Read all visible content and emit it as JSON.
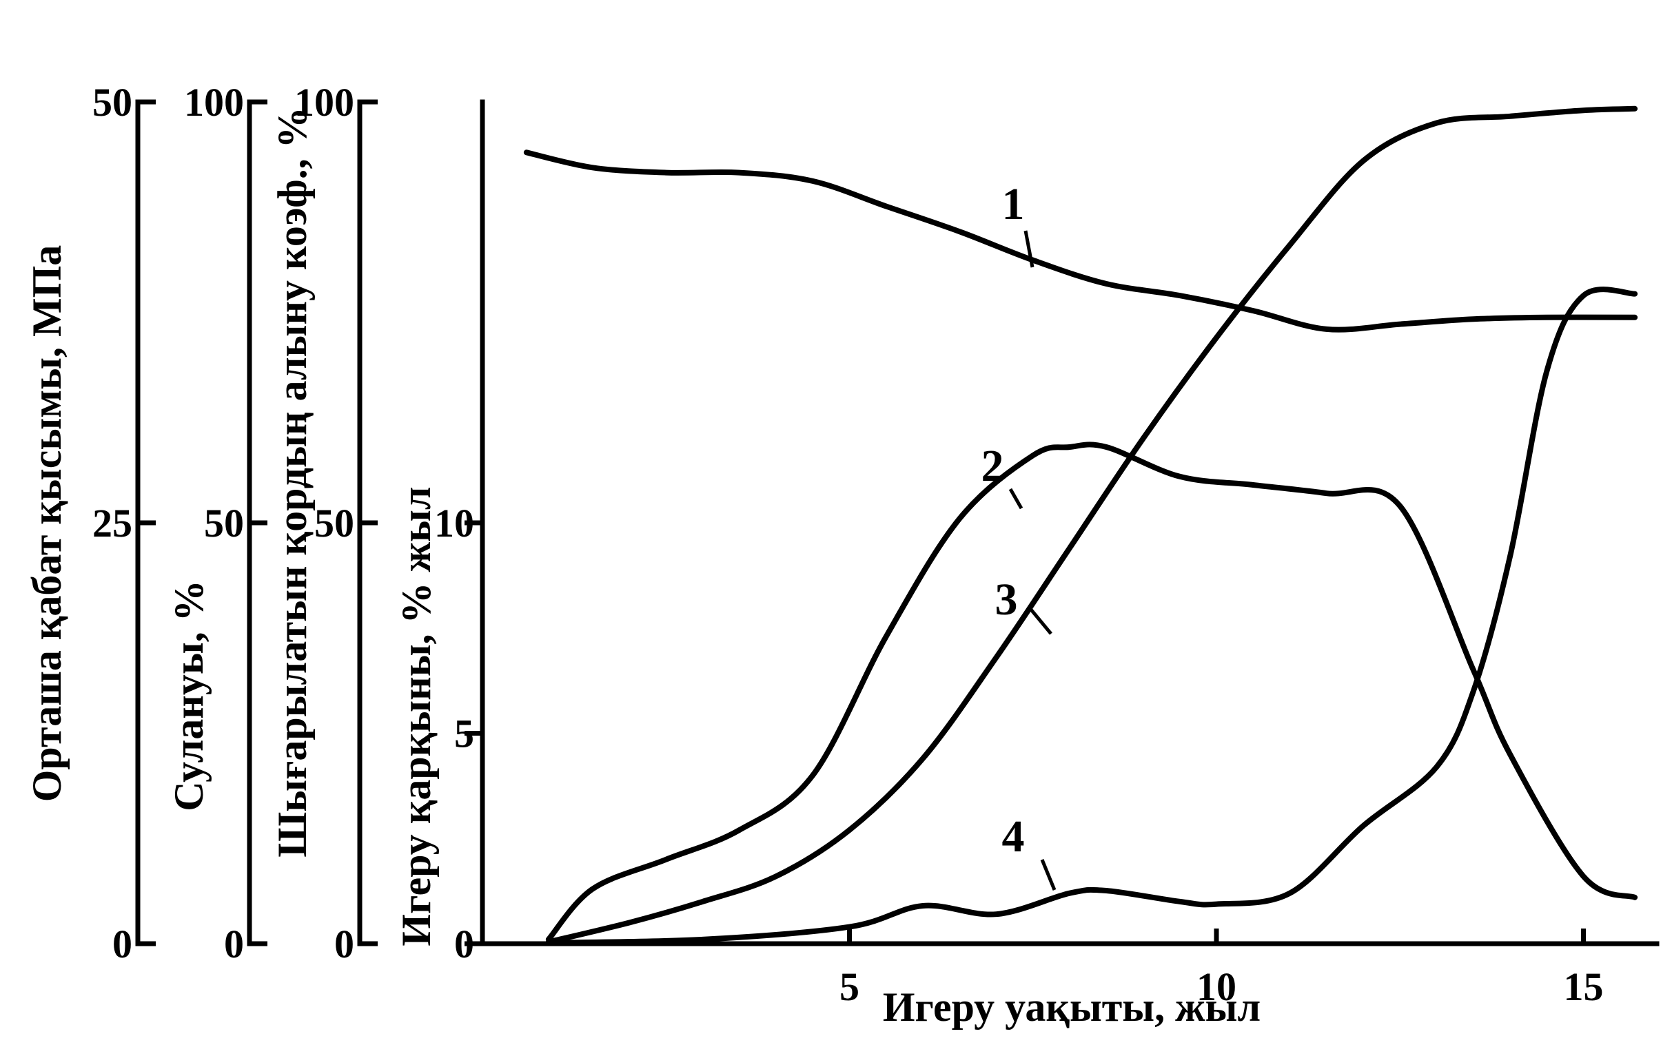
{
  "chart_data": {
    "type": "line",
    "xlabel": "Игеру уақыты, жыл",
    "x_ticks": [
      5,
      10,
      15
    ],
    "xlim": [
      0,
      16
    ],
    "y_axes": [
      {
        "id": "pressure",
        "label": "Орташа қабат қысымы, МПа",
        "ticks": [
          0,
          25,
          50
        ],
        "ylim": [
          0,
          50
        ]
      },
      {
        "id": "watercut",
        "label": "Сулануы, %",
        "ticks": [
          0,
          50,
          100
        ],
        "ylim": [
          0,
          100
        ]
      },
      {
        "id": "recovery",
        "label": "Шығарылатын қордың алыну коэф., %",
        "ticks": [
          0,
          50,
          100
        ],
        "ylim": [
          0,
          100
        ]
      },
      {
        "id": "rate",
        "label": "Игеру қарқыны, % жыл",
        "ticks": [
          0,
          5,
          10
        ],
        "ylim": [
          0,
          20
        ]
      }
    ],
    "series": [
      {
        "name": "1",
        "axis": "pressure",
        "x": [
          0.6,
          1.5,
          2.5,
          3.5,
          4.5,
          5.5,
          6.5,
          7.5,
          8.5,
          9.5,
          10.5,
          11.5,
          12.5,
          13.5,
          14.5,
          15.7
        ],
        "values": [
          47.0,
          46.1,
          45.8,
          45.8,
          45.3,
          43.8,
          42.3,
          40.6,
          39.2,
          38.5,
          37.6,
          36.5,
          36.8,
          37.1,
          37.2,
          37.2
        ]
      },
      {
        "name": "2",
        "axis": "rate",
        "x": [
          0.9,
          1.5,
          2.5,
          3.5,
          4.5,
          5.5,
          6.5,
          7.5,
          8.0,
          8.5,
          9.5,
          10.5,
          11.5,
          12.5,
          13.5,
          14.0,
          15.0,
          15.7
        ],
        "values": [
          0.1,
          1.3,
          2.0,
          2.7,
          4.0,
          7.3,
          10.1,
          11.6,
          11.8,
          11.8,
          11.1,
          10.9,
          10.7,
          10.4,
          6.5,
          4.5,
          1.6,
          1.1
        ]
      },
      {
        "name": "3",
        "axis": "recovery",
        "x": [
          0.9,
          2.0,
          3.0,
          4.0,
          5.0,
          6.0,
          7.0,
          8.0,
          9.0,
          10.0,
          11.0,
          12.0,
          13.0,
          14.0,
          15.0,
          15.7
        ],
        "values": [
          0.2,
          2.5,
          5.0,
          8.0,
          13.5,
          22.0,
          34.0,
          47.0,
          60.0,
          72.0,
          83.0,
          93.0,
          97.5,
          98.3,
          99.0,
          99.2
        ]
      },
      {
        "name": "4",
        "axis": "watercut",
        "x": [
          0.9,
          3.0,
          5.0,
          6.0,
          7.0,
          8.0,
          8.5,
          9.5,
          10.0,
          11.0,
          12.0,
          13.0,
          13.5,
          14.0,
          14.5,
          15.0,
          15.7
        ],
        "values": [
          0.1,
          0.5,
          2.0,
          4.5,
          3.5,
          6.0,
          6.3,
          5.0,
          4.7,
          6.0,
          14.0,
          21.0,
          30.0,
          46.0,
          68.0,
          77.0,
          77.2
        ]
      }
    ]
  }
}
